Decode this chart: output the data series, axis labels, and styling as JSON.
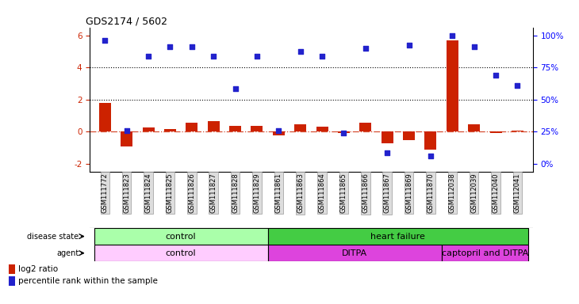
{
  "title": "GDS2174 / 5602",
  "samples": [
    "GSM111772",
    "GSM111823",
    "GSM111824",
    "GSM111825",
    "GSM111826",
    "GSM111827",
    "GSM111828",
    "GSM111829",
    "GSM111861",
    "GSM111863",
    "GSM111864",
    "GSM111865",
    "GSM111866",
    "GSM111867",
    "GSM111869",
    "GSM111870",
    "GSM112038",
    "GSM112039",
    "GSM112040",
    "GSM112041"
  ],
  "log2_ratio": [
    1.8,
    -0.9,
    0.25,
    0.15,
    0.55,
    0.65,
    0.35,
    0.35,
    -0.25,
    0.45,
    0.3,
    -0.1,
    0.55,
    -0.75,
    -0.55,
    -1.1,
    5.7,
    0.45,
    -0.1,
    0.05
  ],
  "percentile_left": [
    5.7,
    0.05,
    4.7,
    5.3,
    5.3,
    4.7,
    2.7,
    4.7,
    0.05,
    5.0,
    4.7,
    -0.1,
    5.2,
    -1.3,
    5.4,
    -1.5,
    6.0,
    5.3,
    3.5,
    2.9
  ],
  "bar_color": "#cc2200",
  "dot_color": "#2222cc",
  "ylim": [
    -2.5,
    6.5
  ],
  "left_yticks": [
    -2,
    0,
    2,
    4,
    6
  ],
  "left_yticklabels": [
    "-2",
    "0",
    "2",
    "4",
    "6"
  ],
  "right_ytick_positions": [
    -2,
    0,
    2,
    4,
    6
  ],
  "right_yticklabels": [
    "0%",
    "25%",
    "50%",
    "75%",
    "100%"
  ],
  "dotted_lines": [
    2.0,
    4.0
  ],
  "hline_color": "#cc2200",
  "disease_state_groups": [
    {
      "label": "control",
      "start": 0,
      "end": 7,
      "color": "#aaffaa"
    },
    {
      "label": "heart failure",
      "start": 8,
      "end": 19,
      "color": "#44cc44"
    }
  ],
  "agent_groups": [
    {
      "label": "control",
      "start": 0,
      "end": 7,
      "color": "#ffccff"
    },
    {
      "label": "DITPA",
      "start": 8,
      "end": 15,
      "color": "#dd44dd"
    },
    {
      "label": "captopril and DITPA",
      "start": 16,
      "end": 19,
      "color": "#dd44dd"
    }
  ],
  "legend_red": "log2 ratio",
  "legend_blue": "percentile rank within the sample",
  "xtick_bg": "#dddddd",
  "xtick_edge": "#999999"
}
